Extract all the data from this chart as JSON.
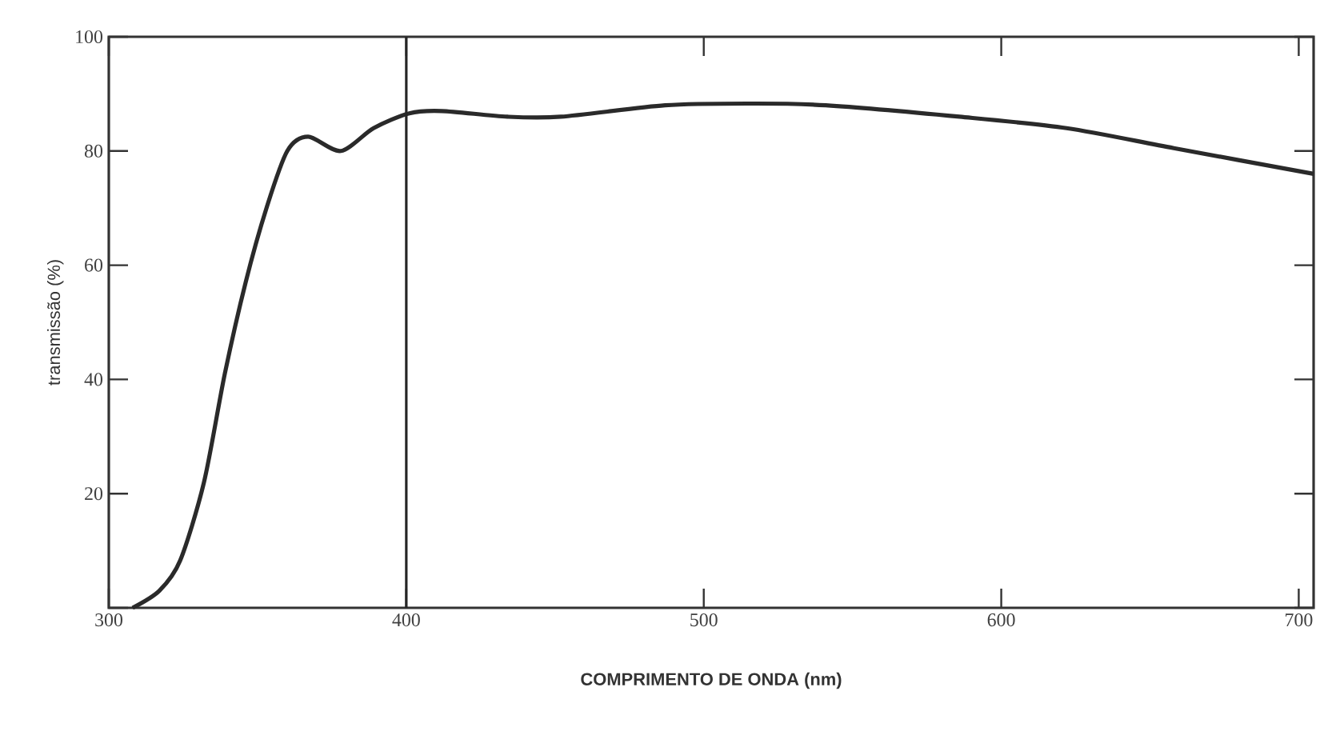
{
  "chart_data": {
    "type": "line",
    "xlabel": "COMPRIMENTO DE ONDA (nm)",
    "ylabel": "transmissão (%)",
    "xlim": [
      300,
      705
    ],
    "ylim": [
      0,
      100
    ],
    "xticks": [
      300,
      400,
      500,
      600,
      700
    ],
    "yticks": [
      {
        "value": 0,
        "label": null
      },
      20,
      40,
      60,
      80,
      100
    ],
    "ref_lines": [
      {
        "axis": "x",
        "value": 400
      }
    ],
    "series": [
      {
        "color": "#2a2a2a",
        "x": [
          308,
          317,
          324,
          332,
          339,
          346,
          353,
          360,
          367,
          378,
          389,
          401,
          412,
          434,
          452,
          487,
          516,
          541,
          586,
          622,
          658,
          705
        ],
        "values": [
          0,
          3,
          8.3,
          22,
          41,
          57,
          70,
          80,
          82.5,
          80,
          84,
          86.6,
          87,
          86,
          86,
          88,
          88.3,
          88,
          86,
          84,
          80.5,
          76
        ]
      }
    ]
  }
}
